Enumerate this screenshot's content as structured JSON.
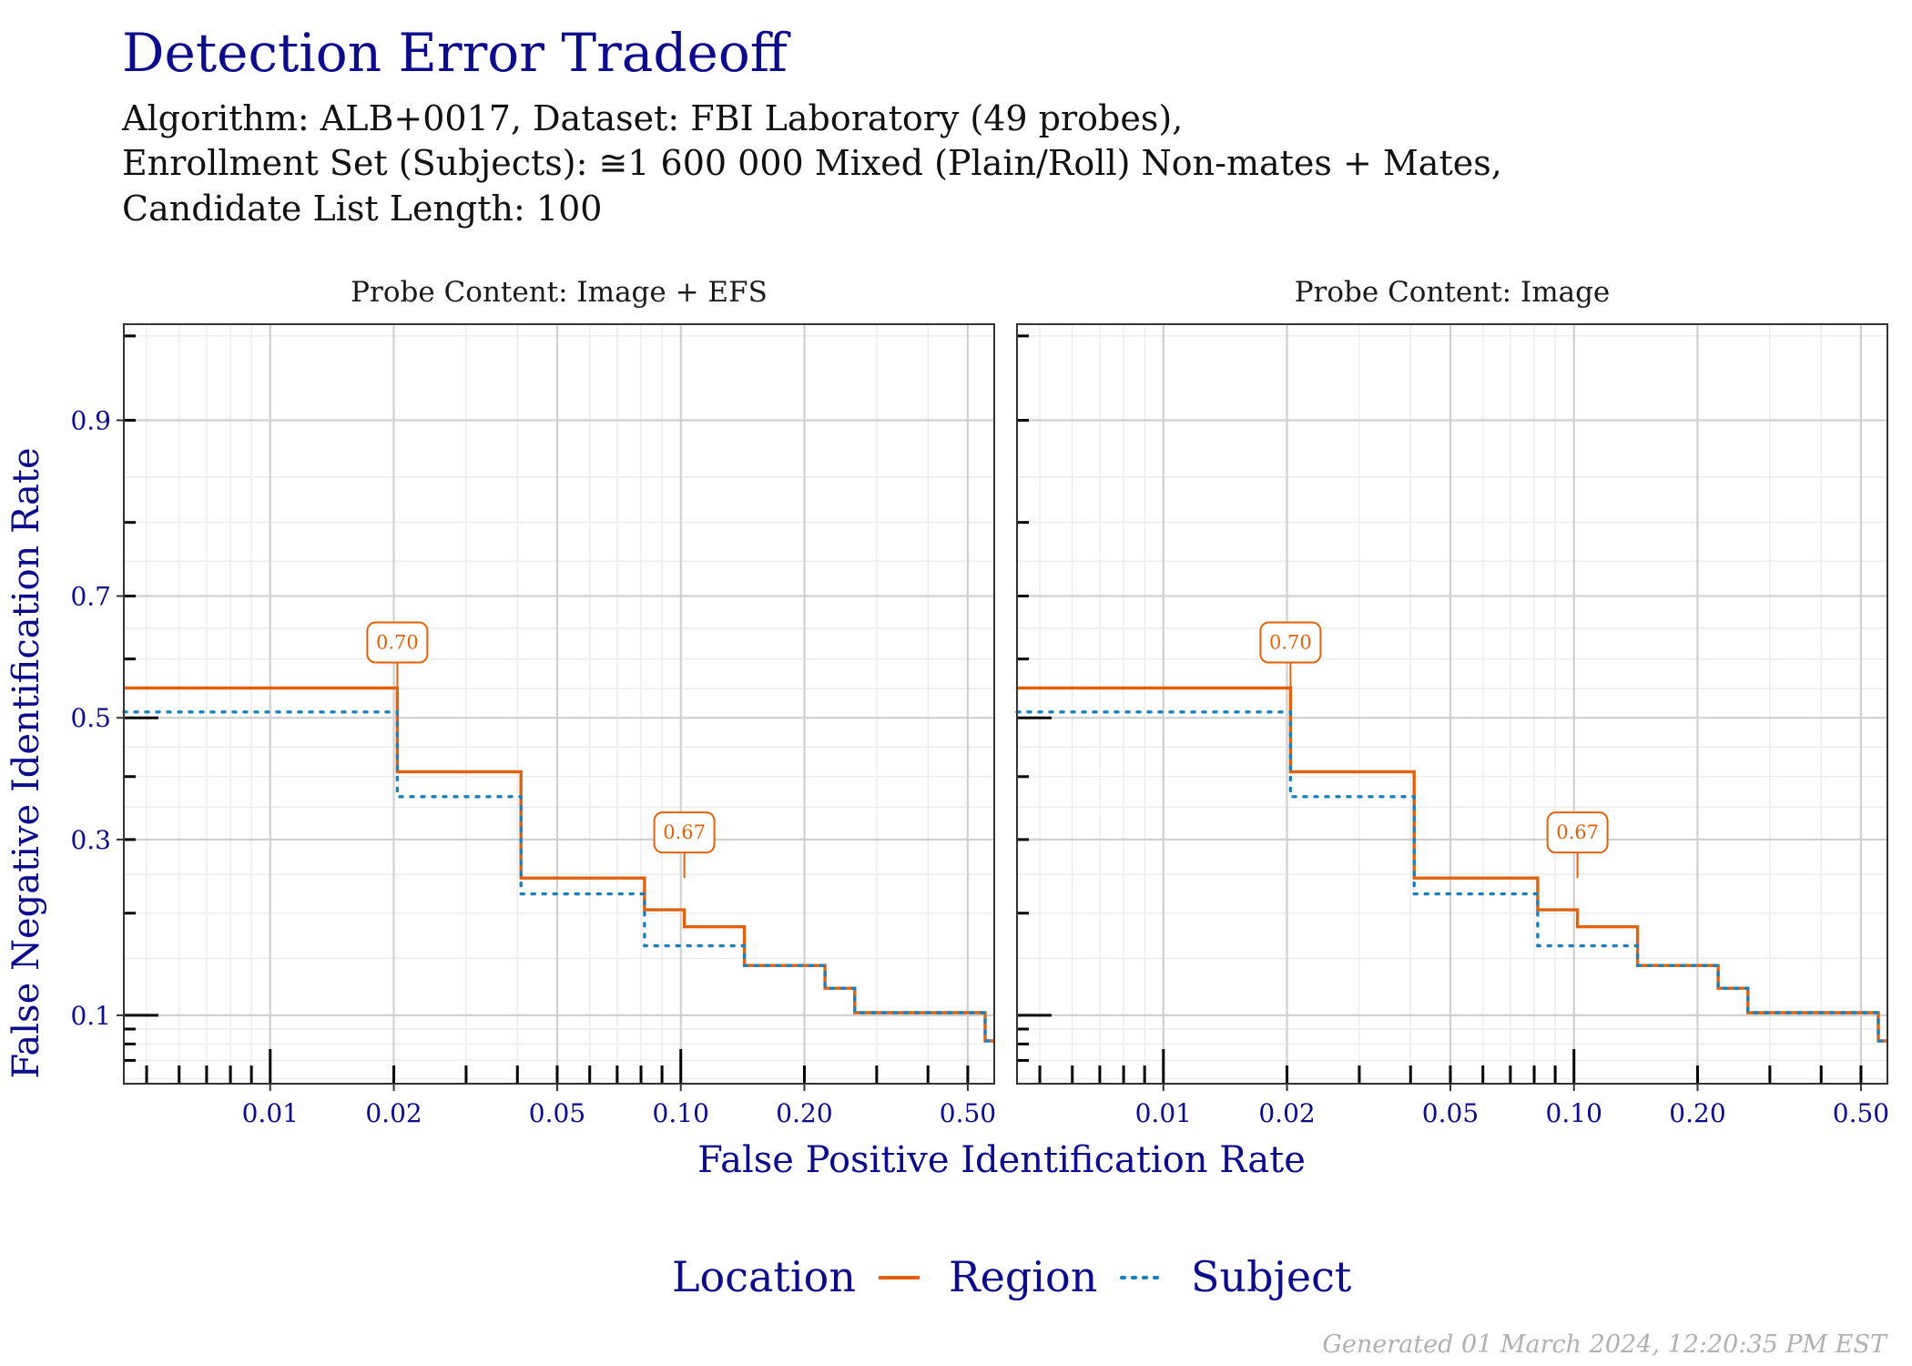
{
  "title": "Detection Error Tradeoff",
  "subtitle_lines": [
    "Algorithm: ALB+0017, Dataset: FBI Laboratory (49 probes),",
    "Enrollment Set (Subjects): ≅1 600 000 Mixed (Plain/Roll) Non-mates + Mates,",
    "Candidate List Length: 100"
  ],
  "caption": "Generated 01 March 2024, 12:20:35 PM EST",
  "colors": {
    "title": "#0b0b8b",
    "region": "#e0620f",
    "subject": "#1a7fba",
    "grid_major": "#d0d0d0",
    "grid_minor": "#ececec"
  },
  "chart_data": {
    "type": "line",
    "step": true,
    "xlabel": "False Positive Identification Rate",
    "ylabel": "False Negative Identification Rate",
    "x_scale": "log",
    "y_scale": "normal-deviate",
    "xlim": [
      0.0044,
      0.58
    ],
    "ylim": [
      0.0575,
      0.955
    ],
    "x_ticks": [
      0.01,
      0.02,
      0.05,
      0.1,
      0.2,
      0.5
    ],
    "x_tick_labels": [
      "0.01",
      "0.02",
      "0.05",
      "0.10",
      "0.20",
      "0.50"
    ],
    "y_ticks": [
      0.1,
      0.3,
      0.5,
      0.7,
      0.9
    ],
    "y_tick_labels": [
      "0.1",
      "0.3",
      "0.5",
      "0.7",
      "0.9"
    ],
    "grid": true,
    "legend": {
      "title": "Location",
      "position": "bottom",
      "entries": [
        "Region",
        "Subject"
      ]
    },
    "panels": [
      {
        "strip": "Probe Content: Image + EFS",
        "series": [
          {
            "name": "Region",
            "style": "solid",
            "x": [
              0.0044,
              0.0204,
              0.0204,
              0.0408,
              0.0408,
              0.0816,
              0.0816,
              0.102,
              0.102,
              0.1429,
              0.1429,
              0.2245,
              0.2245,
              0.2653,
              0.2653,
              0.551,
              0.551,
              0.58
            ],
            "y": [
              0.551,
              0.551,
              0.408,
              0.408,
              0.245,
              0.245,
              0.204,
              0.204,
              0.184,
              0.184,
              0.143,
              0.143,
              0.122,
              0.122,
              0.102,
              0.102,
              0.082,
              0.082
            ]
          },
          {
            "name": "Subject",
            "style": "dotted",
            "x": [
              0.0044,
              0.0204,
              0.0204,
              0.0408,
              0.0408,
              0.0816,
              0.0816,
              0.1429,
              0.1429,
              0.2245,
              0.2245,
              0.2653,
              0.2653,
              0.551,
              0.551,
              0.58
            ],
            "y": [
              0.51,
              0.51,
              0.367,
              0.367,
              0.224,
              0.224,
              0.163,
              0.163,
              0.143,
              0.143,
              0.122,
              0.122,
              0.102,
              0.102,
              0.082,
              0.082
            ]
          }
        ],
        "annotations": [
          {
            "label": "0.70",
            "x": 0.0204,
            "y": 0.551
          },
          {
            "label": "0.67",
            "x": 0.102,
            "y": 0.245
          }
        ]
      },
      {
        "strip": "Probe Content: Image",
        "series": [
          {
            "name": "Region",
            "style": "solid",
            "x": [
              0.0044,
              0.0204,
              0.0204,
              0.0408,
              0.0408,
              0.0816,
              0.0816,
              0.102,
              0.102,
              0.1429,
              0.1429,
              0.2245,
              0.2245,
              0.2653,
              0.2653,
              0.551,
              0.551,
              0.58
            ],
            "y": [
              0.551,
              0.551,
              0.408,
              0.408,
              0.245,
              0.245,
              0.204,
              0.204,
              0.184,
              0.184,
              0.143,
              0.143,
              0.122,
              0.122,
              0.102,
              0.102,
              0.082,
              0.082
            ]
          },
          {
            "name": "Subject",
            "style": "dotted",
            "x": [
              0.0044,
              0.0204,
              0.0204,
              0.0408,
              0.0408,
              0.0816,
              0.0816,
              0.1429,
              0.1429,
              0.2245,
              0.2245,
              0.2653,
              0.2653,
              0.551,
              0.551,
              0.58
            ],
            "y": [
              0.51,
              0.51,
              0.367,
              0.367,
              0.224,
              0.224,
              0.163,
              0.163,
              0.143,
              0.143,
              0.122,
              0.122,
              0.102,
              0.102,
              0.082,
              0.082
            ]
          }
        ],
        "annotations": [
          {
            "label": "0.70",
            "x": 0.0204,
            "y": 0.551
          },
          {
            "label": "0.67",
            "x": 0.102,
            "y": 0.245
          }
        ]
      }
    ]
  }
}
